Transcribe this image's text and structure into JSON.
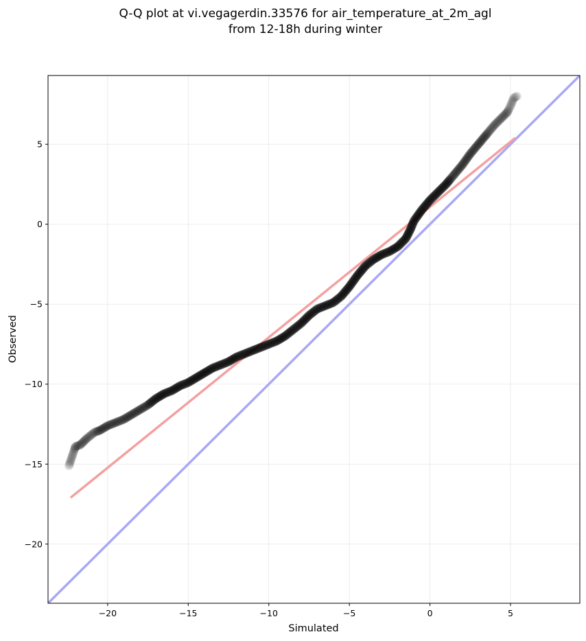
{
  "chart_data": {
    "type": "scatter",
    "title": [
      "Q-Q plot at vi.vegagerdin.33576 for air_temperature_at_2m_agl",
      "from 12-18h during winter"
    ],
    "xlabel": "Simulated",
    "ylabel": "Observed",
    "xlim": [
      -23.7,
      9.3
    ],
    "ylim": [
      -23.7,
      9.3
    ],
    "xticks": [
      -20,
      -15,
      -10,
      -5,
      0,
      5
    ],
    "yticks": [
      -20,
      -15,
      -10,
      -5,
      0,
      5
    ],
    "xtick_labels": [
      "−20",
      "−15",
      "−10",
      "−5",
      "0",
      "5"
    ],
    "ytick_labels": [
      "−20",
      "−15",
      "−10",
      "−5",
      "0",
      "5"
    ],
    "grid": true,
    "quantile_curve": [
      [
        -22.4,
        -15.1
      ],
      [
        -22.0,
        -13.9
      ],
      [
        -21.7,
        -13.8
      ],
      [
        -21.3,
        -13.4
      ],
      [
        -20.8,
        -13.0
      ],
      [
        -20.5,
        -12.9
      ],
      [
        -20.0,
        -12.6
      ],
      [
        -19.5,
        -12.4
      ],
      [
        -19.0,
        -12.2
      ],
      [
        -18.5,
        -11.9
      ],
      [
        -18.0,
        -11.6
      ],
      [
        -17.5,
        -11.3
      ],
      [
        -17.0,
        -10.9
      ],
      [
        -16.5,
        -10.6
      ],
      [
        -16.0,
        -10.4
      ],
      [
        -15.5,
        -10.1
      ],
      [
        -15.0,
        -9.9
      ],
      [
        -14.5,
        -9.6
      ],
      [
        -14.0,
        -9.3
      ],
      [
        -13.5,
        -9.0
      ],
      [
        -13.0,
        -8.8
      ],
      [
        -12.5,
        -8.6
      ],
      [
        -12.0,
        -8.3
      ],
      [
        -11.5,
        -8.1
      ],
      [
        -11.0,
        -7.9
      ],
      [
        -10.5,
        -7.7
      ],
      [
        -10.0,
        -7.5
      ],
      [
        -9.5,
        -7.3
      ],
      [
        -9.0,
        -7.0
      ],
      [
        -8.5,
        -6.6
      ],
      [
        -8.0,
        -6.2
      ],
      [
        -7.5,
        -5.7
      ],
      [
        -7.0,
        -5.3
      ],
      [
        -6.5,
        -5.1
      ],
      [
        -6.0,
        -4.9
      ],
      [
        -5.5,
        -4.5
      ],
      [
        -5.0,
        -3.9
      ],
      [
        -4.5,
        -3.2
      ],
      [
        -4.0,
        -2.6
      ],
      [
        -3.5,
        -2.2
      ],
      [
        -3.0,
        -1.9
      ],
      [
        -2.5,
        -1.7
      ],
      [
        -2.0,
        -1.4
      ],
      [
        -1.5,
        -0.9
      ],
      [
        -1.2,
        -0.3
      ],
      [
        -1.0,
        0.2
      ],
      [
        -0.5,
        0.9
      ],
      [
        0.0,
        1.5
      ],
      [
        0.5,
        2.0
      ],
      [
        1.0,
        2.5
      ],
      [
        1.5,
        3.1
      ],
      [
        2.0,
        3.7
      ],
      [
        2.5,
        4.4
      ],
      [
        3.0,
        5.0
      ],
      [
        3.5,
        5.6
      ],
      [
        4.0,
        6.2
      ],
      [
        4.5,
        6.7
      ],
      [
        4.8,
        7.0
      ],
      [
        5.0,
        7.4
      ],
      [
        5.2,
        7.9
      ],
      [
        5.4,
        8.0
      ]
    ],
    "fit_line": {
      "x": [
        -22.3,
        5.3
      ],
      "y": [
        -17.1,
        5.4
      ],
      "color": "#f4a0a0"
    },
    "identity_line": {
      "x": [
        -23.7,
        9.3
      ],
      "y": [
        -23.7,
        9.3
      ],
      "color": "#a8a8f4"
    },
    "point_color": "#000000"
  }
}
